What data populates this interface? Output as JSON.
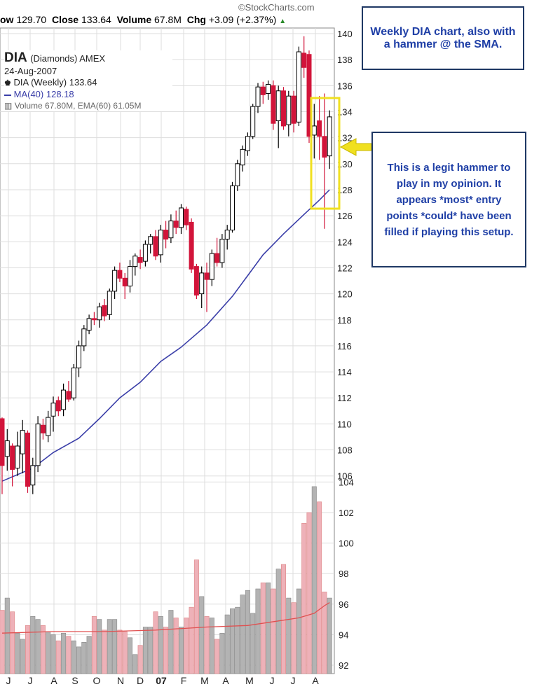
{
  "header": {
    "low_label": "ow",
    "low_value": "129.70",
    "close_label": "Close",
    "close_value": "133.64",
    "volume_label": "Volume",
    "volume_value": "67.8M",
    "chg_label": "Chg",
    "chg_value": "+3.09 (+2.37%)",
    "chg_arrow": "▲",
    "brand": "©StockCharts.com"
  },
  "legend": {
    "symbol": "DIA",
    "name": "(Diamonds) AMEX",
    "date": "24-Aug-2007",
    "price_line": "DIA (Weekly) 133.64",
    "ma_line": "MA(40) 128.18",
    "volume_line": "Volume 67.80M, EMA(60) 61.05M"
  },
  "annotations": {
    "top_note": "Weekly DIA chart, also with a hammer @ the SMA.",
    "side_note": "This is a legit hammer to play in my opinion. It appears *most* entry points *could* have been filled if playing this setup."
  },
  "colors": {
    "up": "#000000",
    "down": "#d2143a",
    "ma": "#3a3ea8",
    "vol_up": "#b3b3b3",
    "vol_down": "#eeb1b8",
    "ema": "#e05050",
    "highlight": "#f0e020",
    "arrow": "#f0e020",
    "callout_text": "#1f3fa6",
    "callout_border": "#1f3864"
  },
  "chart_data": {
    "type": "candlestick",
    "price_ylim": [
      104,
      140
    ],
    "price_ticks": [
      106,
      108,
      110,
      112,
      114,
      116,
      118,
      120,
      122,
      124,
      126,
      128,
      130,
      132,
      134,
      136,
      138,
      140
    ],
    "volume_ticks": [
      92,
      94,
      96,
      98,
      100,
      102,
      104
    ],
    "x_tick_labels": [
      "J",
      "J",
      "A",
      "S",
      "O",
      "N",
      "D",
      "07",
      "F",
      "M",
      "A",
      "M",
      "J",
      "J",
      "A"
    ],
    "grid": true,
    "candles": [
      {
        "o": 110.4,
        "h": 110.5,
        "l": 104.6,
        "c": 106.8
      },
      {
        "o": 107.5,
        "h": 109.6,
        "l": 106.4,
        "c": 108.7
      },
      {
        "o": 108.3,
        "h": 108.5,
        "l": 105.2,
        "c": 106.5
      },
      {
        "o": 106.6,
        "h": 109.4,
        "l": 106.0,
        "c": 108.3
      },
      {
        "o": 107.7,
        "h": 110.3,
        "l": 106.2,
        "c": 109.5
      },
      {
        "o": 109.3,
        "h": 109.5,
        "l": 104.7,
        "c": 105.2
      },
      {
        "o": 105.3,
        "h": 107.4,
        "l": 104.6,
        "c": 106.8
      },
      {
        "o": 106.8,
        "h": 110.6,
        "l": 106.3,
        "c": 110.0
      },
      {
        "o": 109.9,
        "h": 110.4,
        "l": 108.8,
        "c": 109.3
      },
      {
        "o": 109.1,
        "h": 111.0,
        "l": 108.6,
        "c": 110.5
      },
      {
        "o": 110.6,
        "h": 112.1,
        "l": 109.4,
        "c": 111.6
      },
      {
        "o": 111.8,
        "h": 112.1,
        "l": 110.6,
        "c": 111.0
      },
      {
        "o": 111.1,
        "h": 113.1,
        "l": 110.6,
        "c": 112.6
      },
      {
        "o": 112.5,
        "h": 113.3,
        "l": 111.7,
        "c": 111.9
      },
      {
        "o": 112.0,
        "h": 114.6,
        "l": 111.8,
        "c": 114.3
      },
      {
        "o": 114.3,
        "h": 116.4,
        "l": 113.6,
        "c": 116.0
      },
      {
        "o": 116.0,
        "h": 117.6,
        "l": 115.6,
        "c": 117.3
      },
      {
        "o": 117.2,
        "h": 118.4,
        "l": 116.9,
        "c": 118.1
      },
      {
        "o": 118.1,
        "h": 118.6,
        "l": 117.6,
        "c": 118.0
      },
      {
        "o": 118.0,
        "h": 119.3,
        "l": 117.4,
        "c": 119.0
      },
      {
        "o": 119.1,
        "h": 119.6,
        "l": 117.9,
        "c": 118.3
      },
      {
        "o": 118.4,
        "h": 120.4,
        "l": 118.0,
        "c": 120.2
      },
      {
        "o": 120.2,
        "h": 122.1,
        "l": 119.6,
        "c": 121.8
      },
      {
        "o": 121.8,
        "h": 122.4,
        "l": 120.9,
        "c": 121.2
      },
      {
        "o": 121.2,
        "h": 121.6,
        "l": 119.6,
        "c": 120.6
      },
      {
        "o": 120.6,
        "h": 122.6,
        "l": 120.1,
        "c": 122.1
      },
      {
        "o": 122.1,
        "h": 123.1,
        "l": 121.4,
        "c": 122.9
      },
      {
        "o": 122.8,
        "h": 123.4,
        "l": 121.9,
        "c": 122.4
      },
      {
        "o": 122.5,
        "h": 124.1,
        "l": 122.1,
        "c": 123.8
      },
      {
        "o": 123.8,
        "h": 124.6,
        "l": 123.1,
        "c": 124.4
      },
      {
        "o": 124.4,
        "h": 124.9,
        "l": 122.6,
        "c": 122.9
      },
      {
        "o": 123.0,
        "h": 125.3,
        "l": 122.4,
        "c": 124.9
      },
      {
        "o": 124.9,
        "h": 125.6,
        "l": 123.5,
        "c": 124.2
      },
      {
        "o": 124.3,
        "h": 126.1,
        "l": 123.9,
        "c": 125.6
      },
      {
        "o": 125.6,
        "h": 126.4,
        "l": 124.6,
        "c": 125.1
      },
      {
        "o": 125.1,
        "h": 126.9,
        "l": 124.6,
        "c": 126.6
      },
      {
        "o": 126.5,
        "h": 126.7,
        "l": 124.9,
        "c": 125.3
      },
      {
        "o": 125.5,
        "h": 125.8,
        "l": 121.6,
        "c": 121.9
      },
      {
        "o": 122.1,
        "h": 122.3,
        "l": 119.6,
        "c": 119.9
      },
      {
        "o": 120.0,
        "h": 122.1,
        "l": 118.9,
        "c": 121.6
      },
      {
        "o": 121.6,
        "h": 122.4,
        "l": 118.6,
        "c": 121.1
      },
      {
        "o": 121.1,
        "h": 123.4,
        "l": 120.6,
        "c": 123.1
      },
      {
        "o": 123.1,
        "h": 124.3,
        "l": 122.1,
        "c": 122.4
      },
      {
        "o": 122.4,
        "h": 124.6,
        "l": 122.0,
        "c": 124.2
      },
      {
        "o": 124.2,
        "h": 125.3,
        "l": 123.4,
        "c": 124.9
      },
      {
        "o": 124.9,
        "h": 128.6,
        "l": 124.7,
        "c": 128.3
      },
      {
        "o": 128.3,
        "h": 130.3,
        "l": 127.9,
        "c": 130.0
      },
      {
        "o": 129.9,
        "h": 131.4,
        "l": 129.4,
        "c": 131.1
      },
      {
        "o": 131.0,
        "h": 132.4,
        "l": 130.6,
        "c": 132.1
      },
      {
        "o": 132.1,
        "h": 134.6,
        "l": 131.9,
        "c": 134.4
      },
      {
        "o": 134.4,
        "h": 136.2,
        "l": 133.9,
        "c": 135.9
      },
      {
        "o": 135.9,
        "h": 136.3,
        "l": 134.6,
        "c": 135.3
      },
      {
        "o": 135.4,
        "h": 136.4,
        "l": 134.9,
        "c": 136.1
      },
      {
        "o": 136.0,
        "h": 136.4,
        "l": 132.6,
        "c": 133.1
      },
      {
        "o": 133.3,
        "h": 136.0,
        "l": 131.2,
        "c": 135.6
      },
      {
        "o": 135.6,
        "h": 135.9,
        "l": 132.6,
        "c": 132.9
      },
      {
        "o": 133.0,
        "h": 135.6,
        "l": 132.1,
        "c": 135.2
      },
      {
        "o": 135.2,
        "h": 135.6,
        "l": 132.4,
        "c": 133.1
      },
      {
        "o": 133.2,
        "h": 139.0,
        "l": 132.9,
        "c": 138.6
      },
      {
        "o": 138.5,
        "h": 139.8,
        "l": 136.6,
        "c": 137.4
      },
      {
        "o": 138.4,
        "h": 138.7,
        "l": 131.6,
        "c": 132.1
      },
      {
        "o": 132.2,
        "h": 134.6,
        "l": 130.4,
        "c": 132.9
      },
      {
        "o": 133.3,
        "h": 135.2,
        "l": 130.3,
        "c": 132.1
      },
      {
        "o": 132.1,
        "h": 135.4,
        "l": 125.0,
        "c": 130.5
      },
      {
        "o": 130.6,
        "h": 134.1,
        "l": 129.6,
        "c": 133.6
      }
    ],
    "ma40": [
      [
        0,
        105.6
      ],
      [
        6,
        106.6
      ],
      [
        10,
        107.8
      ],
      [
        15,
        108.9
      ],
      [
        19,
        110.4
      ],
      [
        23,
        112.0
      ],
      [
        27,
        113.2
      ],
      [
        31,
        114.8
      ],
      [
        35,
        115.9
      ],
      [
        40,
        117.6
      ],
      [
        45,
        119.8
      ],
      [
        48,
        121.4
      ],
      [
        51,
        123.0
      ],
      [
        55,
        124.6
      ],
      [
        59,
        126.1
      ],
      [
        62,
        127.2
      ],
      [
        64,
        128.0
      ]
    ],
    "volumes": [
      95.6,
      96.4,
      95.5,
      94.1,
      93.7,
      94.6,
      95.2,
      95.0,
      94.6,
      94.2,
      94.0,
      93.6,
      94.1,
      93.9,
      93.6,
      93.2,
      93.5,
      93.9,
      95.2,
      95.0,
      94.3,
      95.0,
      95.0,
      94.3,
      94.2,
      93.8,
      92.7,
      93.3,
      94.5,
      94.5,
      95.5,
      95.2,
      94.5,
      95.6,
      95.1,
      94.5,
      95.1,
      95.8,
      98.9,
      96.5,
      95.2,
      95.1,
      93.7,
      94.1,
      95.3,
      95.7,
      95.8,
      96.6,
      96.9,
      95.4,
      97.0,
      97.4,
      97.4,
      97.0,
      98.3,
      98.6,
      96.4,
      96.1,
      97.0,
      101.3,
      102.0,
      103.7,
      102.7,
      96.8,
      96.4
    ],
    "ema60": [
      [
        0,
        94.1
      ],
      [
        10,
        94.2
      ],
      [
        20,
        94.2
      ],
      [
        30,
        94.3
      ],
      [
        40,
        94.5
      ],
      [
        48,
        94.6
      ],
      [
        54,
        94.9
      ],
      [
        58,
        95.1
      ],
      [
        61,
        95.4
      ],
      [
        63,
        95.9
      ],
      [
        64,
        96.1
      ]
    ]
  }
}
